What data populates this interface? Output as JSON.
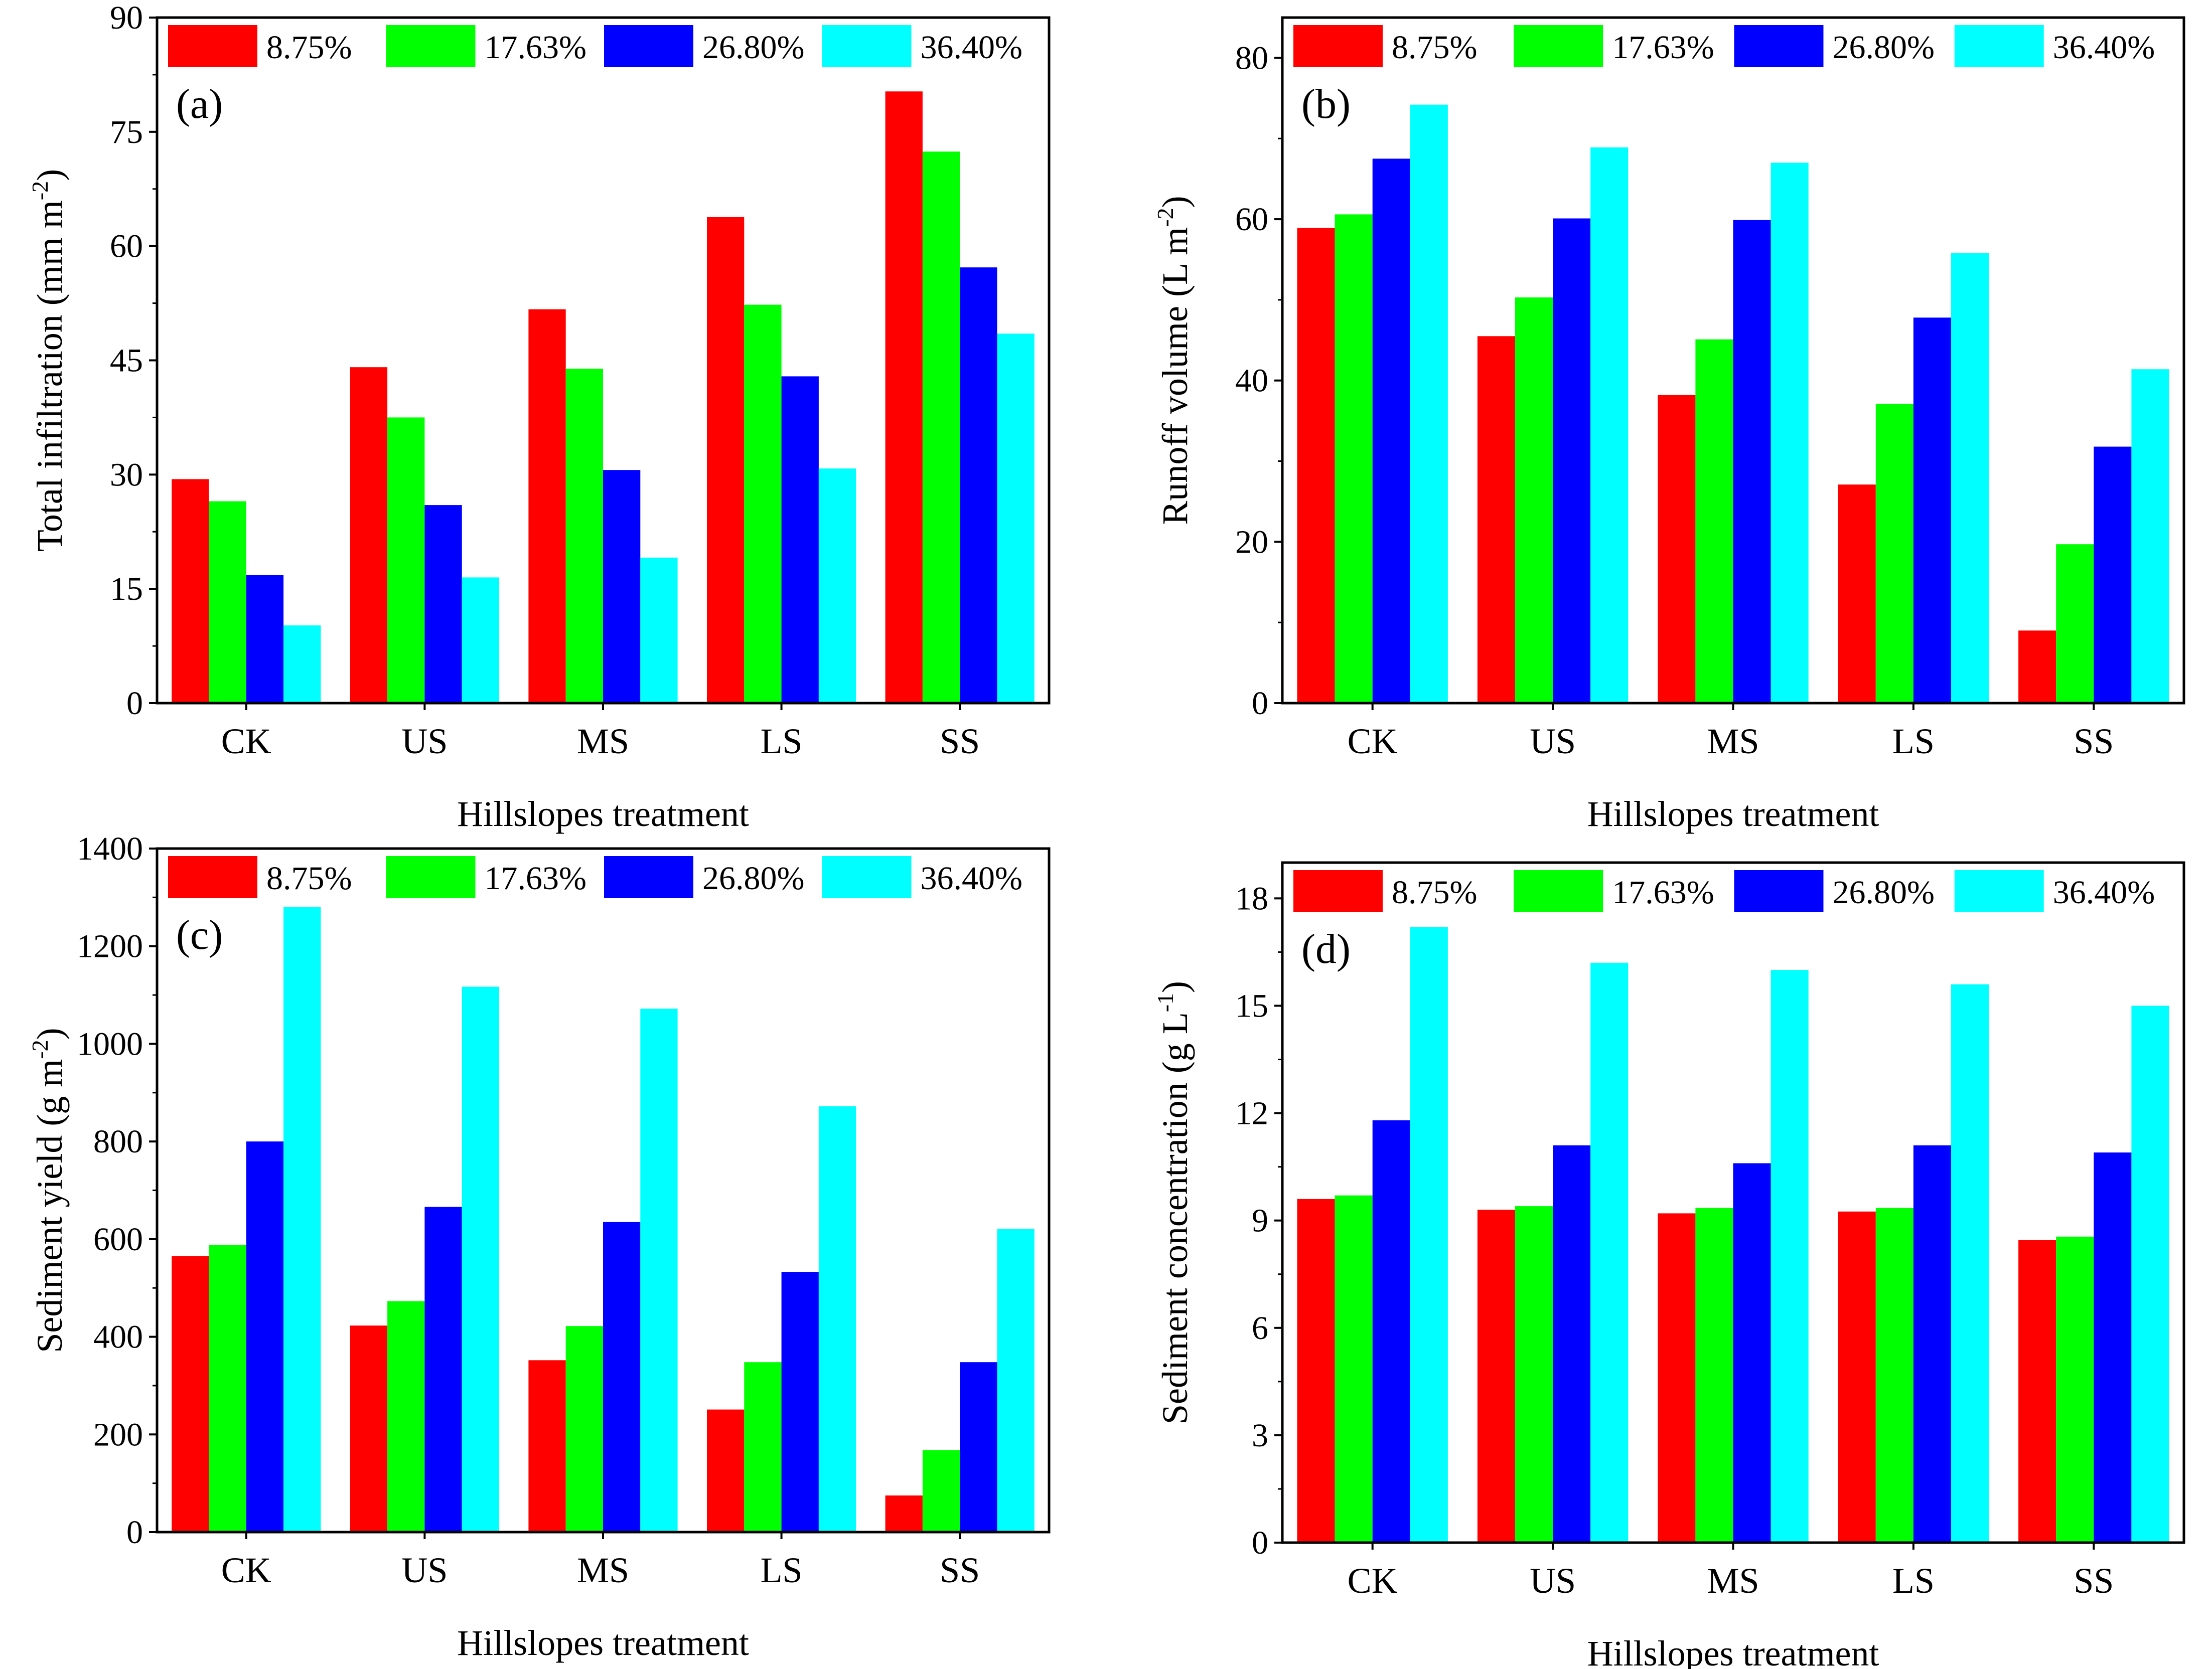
{
  "figure_title": "",
  "colors": {
    "series": [
      "#ff0000",
      "#00ff00",
      "#0000ff",
      "#00ffff"
    ],
    "axis": "#000000",
    "background": "#ffffff"
  },
  "chart_data": [
    {
      "type": "bar",
      "panel": "(a)",
      "title": "",
      "xlabel": "Hillslopes treatment",
      "ylabel": "Total infiltration (mm m",
      "ylabel_sup": "-2",
      "ylabel_tail": ")",
      "ylim": [
        0,
        90
      ],
      "yticks": [
        0,
        15,
        30,
        45,
        60,
        75,
        90
      ],
      "categories": [
        "CK",
        "US",
        "MS",
        "LS",
        "SS"
      ],
      "series": [
        {
          "name": "8.75%",
          "values": [
            29.4,
            44.1,
            51.7,
            63.8,
            80.3
          ]
        },
        {
          "name": "17.63%",
          "values": [
            26.5,
            37.5,
            43.9,
            52.3,
            72.4
          ]
        },
        {
          "name": "26.80%",
          "values": [
            16.8,
            26.0,
            30.6,
            42.9,
            57.2
          ]
        },
        {
          "name": "36.40%",
          "values": [
            10.2,
            16.5,
            19.1,
            30.8,
            48.5
          ]
        }
      ],
      "legend_position": "top"
    },
    {
      "type": "bar",
      "panel": "(b)",
      "title": "",
      "xlabel": "Hillslopes treatment",
      "ylabel": "Runoff volume (L m",
      "ylabel_sup": "-2",
      "ylabel_tail": ")",
      "ylim": [
        0,
        85
      ],
      "yticks": [
        0,
        20,
        40,
        60,
        80
      ],
      "categories": [
        "CK",
        "US",
        "MS",
        "LS",
        "SS"
      ],
      "series": [
        {
          "name": "8.75%",
          "values": [
            58.9,
            45.5,
            38.2,
            27.1,
            9.0
          ]
        },
        {
          "name": "17.63%",
          "values": [
            60.6,
            50.3,
            45.1,
            37.1,
            19.7
          ]
        },
        {
          "name": "26.80%",
          "values": [
            67.5,
            60.1,
            59.9,
            47.8,
            31.8
          ]
        },
        {
          "name": "36.40%",
          "values": [
            74.2,
            68.9,
            67.0,
            55.8,
            41.4
          ]
        }
      ],
      "legend_position": "top"
    },
    {
      "type": "bar",
      "panel": "(c)",
      "title": "",
      "xlabel": "Hillslopes treatment",
      "ylabel": "Sediment yield (g m",
      "ylabel_sup": "-2",
      "ylabel_tail": ")",
      "ylim": [
        0,
        1400
      ],
      "yticks": [
        0,
        200,
        400,
        600,
        800,
        1000,
        1200,
        1400
      ],
      "categories": [
        "CK",
        "US",
        "MS",
        "LS",
        "SS"
      ],
      "series": [
        {
          "name": "8.75%",
          "values": [
            565,
            423,
            352,
            251,
            75
          ]
        },
        {
          "name": "17.63%",
          "values": [
            588,
            473,
            422,
            348,
            168
          ]
        },
        {
          "name": "26.80%",
          "values": [
            800,
            666,
            635,
            533,
            348
          ]
        },
        {
          "name": "36.40%",
          "values": [
            1280,
            1117,
            1072,
            872,
            621
          ]
        }
      ],
      "legend_position": "top"
    },
    {
      "type": "bar",
      "panel": "(d)",
      "title": "",
      "xlabel": "Hillslopes treatment",
      "ylabel": "Sediment concentration (g L",
      "ylabel_sup": "-1",
      "ylabel_tail": ")",
      "ylim": [
        0,
        19
      ],
      "yticks": [
        0,
        3,
        6,
        9,
        12,
        15,
        18
      ],
      "categories": [
        "CK",
        "US",
        "MS",
        "LS",
        "SS"
      ],
      "series": [
        {
          "name": "8.75%",
          "values": [
            9.6,
            9.3,
            9.2,
            9.25,
            8.45
          ]
        },
        {
          "name": "17.63%",
          "values": [
            9.7,
            9.4,
            9.35,
            9.35,
            8.55
          ]
        },
        {
          "name": "26.80%",
          "values": [
            11.8,
            11.1,
            10.6,
            11.1,
            10.9
          ]
        },
        {
          "name": "36.40%",
          "values": [
            17.2,
            16.2,
            16.0,
            15.6,
            15.0
          ]
        }
      ],
      "legend_position": "top"
    }
  ]
}
